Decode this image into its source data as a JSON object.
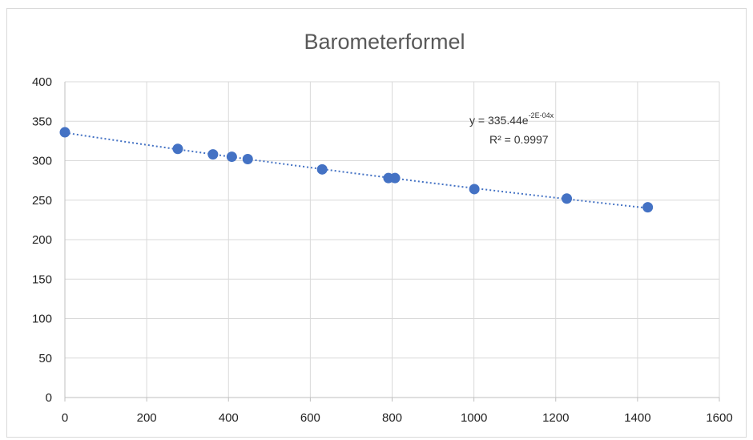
{
  "chart_data": {
    "type": "scatter",
    "title": "Barometerformel",
    "xlabel": "",
    "ylabel": "",
    "xlim": [
      0,
      1600
    ],
    "ylim": [
      0,
      400
    ],
    "x_ticks": [
      "0",
      "200",
      "400",
      "600",
      "800",
      "1000",
      "1200",
      "1400",
      "1600"
    ],
    "y_ticks": [
      "0",
      "50",
      "100",
      "150",
      "200",
      "250",
      "300",
      "350",
      "400"
    ],
    "grid": true,
    "legend": "none",
    "series": [
      {
        "x": [
          0,
          276,
          362,
          408,
          447,
          629,
          791,
          807,
          1001,
          1227,
          1425
        ],
        "y": [
          336,
          315,
          308,
          305,
          302,
          289,
          278,
          278,
          264,
          252,
          241
        ],
        "color": "#4472c4"
      }
    ],
    "trendline": {
      "type": "exponential",
      "a": 335.44,
      "b": -0.000235,
      "x_range": [
        0,
        1425
      ],
      "equation_prefix": "y = 335.44e",
      "equation_exponent": "-2E-04x",
      "r_squared": "R² = 0.9997",
      "color": "#4472c4"
    }
  }
}
